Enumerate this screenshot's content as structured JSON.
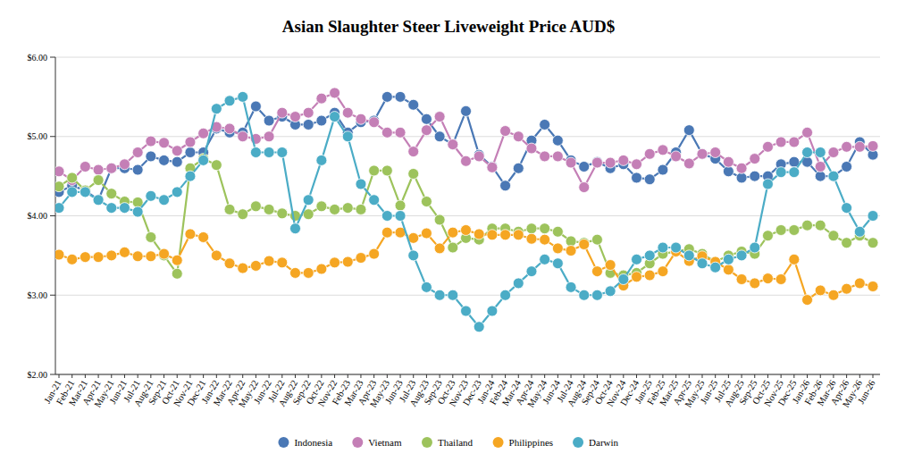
{
  "chart_data": {
    "type": "line",
    "title": "Asian Slaughter Steer Liveweight Price AUD$",
    "categories": [
      "Jan-21",
      "Feb-21",
      "Mar-21",
      "Apr-21",
      "May-21",
      "Jun-21",
      "Jul-21",
      "Aug-21",
      "Sep-21",
      "Oct-21",
      "Nov-21",
      "Dec-21",
      "Jan-22",
      "Mar-22",
      "Apr-22",
      "May-22",
      "Jun-22",
      "Jul-22",
      "Aug-22",
      "Sep-22",
      "Oct-22",
      "Nov-22",
      "Feb-23",
      "Mar-23",
      "Apr-23",
      "May-23",
      "Jun-23",
      "Jul-23",
      "Aug-23",
      "Sep-23",
      "Oct-23",
      "Nov-23",
      "Dec-23",
      "Jan-24",
      "Feb-24",
      "Mar-24",
      "Apr-24",
      "May-24",
      "Jun-24",
      "Jul-24",
      "Aug-24",
      "Sep-24",
      "Oct-24",
      "Nov-24",
      "Dec-24",
      "Jan-25",
      "Feb-25",
      "Mar-25",
      "Apr-25",
      "May-25",
      "Jun-25",
      "Jul-25",
      "Aug-25",
      "Sep-25",
      "Oct-25",
      "Nov-25",
      "Dec-25",
      "Jan-26",
      "Feb-26",
      "Mar-26",
      "Apr-26",
      "May-26",
      "Jun-26"
    ],
    "series": [
      {
        "name": "Indonesia",
        "color": "#4a78b5",
        "marker": "circle",
        "values": [
          4.3,
          4.38,
          4.32,
          4.2,
          4.6,
          4.6,
          4.58,
          4.75,
          4.7,
          4.68,
          4.8,
          4.8,
          5.1,
          5.05,
          5.05,
          5.38,
          5.2,
          5.25,
          5.15,
          5.15,
          5.2,
          5.3,
          5.05,
          5.18,
          5.2,
          5.5,
          5.5,
          5.4,
          5.22,
          5.0,
          4.9,
          5.32,
          4.77,
          4.62,
          4.38,
          4.6,
          4.95,
          5.15,
          4.95,
          4.7,
          4.62,
          4.68,
          4.6,
          4.65,
          4.48,
          4.46,
          4.58,
          4.8,
          5.08,
          4.78,
          4.72,
          4.56,
          4.48,
          4.5,
          4.5,
          4.65,
          4.68,
          4.68,
          4.5,
          4.5,
          4.62,
          4.93,
          4.77
        ]
      },
      {
        "name": "Vietnam",
        "color": "#c47fb6",
        "marker": "circle",
        "values": [
          4.56,
          4.45,
          4.62,
          4.58,
          4.6,
          4.65,
          4.8,
          4.94,
          4.92,
          4.82,
          4.93,
          5.04,
          5.12,
          5.1,
          5.0,
          4.97,
          5.0,
          5.3,
          5.25,
          5.3,
          5.48,
          5.55,
          5.3,
          5.22,
          5.18,
          5.05,
          5.05,
          4.81,
          5.08,
          5.25,
          4.9,
          4.69,
          4.75,
          4.61,
          5.07,
          5.0,
          4.85,
          4.75,
          4.75,
          4.67,
          4.36,
          4.67,
          4.67,
          4.7,
          4.65,
          4.78,
          4.83,
          4.75,
          4.66,
          4.78,
          4.8,
          4.68,
          4.6,
          4.72,
          4.87,
          4.93,
          4.93,
          5.05,
          4.62,
          4.8,
          4.87,
          4.87,
          4.88
        ]
      },
      {
        "name": "Thailand",
        "color": "#9dc35c",
        "marker": "circle",
        "values": [
          4.37,
          4.48,
          4.32,
          4.45,
          4.28,
          4.18,
          4.17,
          3.73,
          3.5,
          3.27,
          4.6,
          4.72,
          4.64,
          4.08,
          4.02,
          4.12,
          4.08,
          4.03,
          4.0,
          4.02,
          4.12,
          4.08,
          4.1,
          4.08,
          4.57,
          4.57,
          4.13,
          4.53,
          4.18,
          3.95,
          3.6,
          3.72,
          3.7,
          3.84,
          3.84,
          3.8,
          3.84,
          3.84,
          3.8,
          3.68,
          3.66,
          3.7,
          3.28,
          3.25,
          3.28,
          3.4,
          3.52,
          3.55,
          3.58,
          3.52,
          3.42,
          3.5,
          3.55,
          3.52,
          3.75,
          3.82,
          3.82,
          3.88,
          3.88,
          3.75,
          3.66,
          3.75,
          3.66
        ]
      },
      {
        "name": "Philippines",
        "color": "#f5a623",
        "marker": "circle",
        "values": [
          3.51,
          3.45,
          3.48,
          3.48,
          3.5,
          3.54,
          3.49,
          3.49,
          3.52,
          3.44,
          3.77,
          3.73,
          3.5,
          3.4,
          3.34,
          3.37,
          3.43,
          3.41,
          3.28,
          3.28,
          3.33,
          3.41,
          3.42,
          3.47,
          3.52,
          3.79,
          3.79,
          3.72,
          3.78,
          3.59,
          3.79,
          3.82,
          3.77,
          3.76,
          3.76,
          3.76,
          3.71,
          3.7,
          3.59,
          3.56,
          3.64,
          3.3,
          3.38,
          3.12,
          3.23,
          3.25,
          3.3,
          3.55,
          3.43,
          3.49,
          3.42,
          3.32,
          3.2,
          3.15,
          3.21,
          3.2,
          3.45,
          2.94,
          3.06,
          3.0,
          3.08,
          3.15,
          3.11
        ]
      },
      {
        "name": "Darwin",
        "color": "#4bacc6",
        "marker": "circle",
        "values": [
          4.1,
          4.3,
          4.3,
          4.2,
          4.1,
          4.1,
          4.05,
          4.25,
          4.2,
          4.3,
          4.5,
          4.7,
          5.35,
          5.45,
          5.5,
          4.8,
          4.8,
          4.8,
          3.84,
          4.2,
          4.7,
          5.25,
          5.0,
          4.4,
          4.2,
          4.0,
          4.0,
          3.5,
          3.1,
          3.0,
          3.0,
          2.8,
          2.6,
          2.8,
          3.0,
          3.15,
          3.3,
          3.45,
          3.4,
          3.1,
          3.0,
          3.0,
          3.05,
          3.2,
          3.45,
          3.5,
          3.6,
          3.6,
          3.5,
          3.4,
          3.35,
          3.45,
          3.5,
          3.6,
          4.4,
          4.55,
          4.55,
          4.8,
          4.8,
          4.5,
          4.1,
          3.8,
          4.0
        ]
      }
    ],
    "ylim": [
      2,
      6
    ],
    "yticks": [
      {
        "value": 2,
        "label": "$2.00"
      },
      {
        "value": 3,
        "label": "$3.00"
      },
      {
        "value": 4,
        "label": "$4.00"
      },
      {
        "value": 5,
        "label": "$5.00"
      },
      {
        "value": 6,
        "label": "$6.00"
      }
    ],
    "grid": true,
    "legend": "bottom"
  }
}
